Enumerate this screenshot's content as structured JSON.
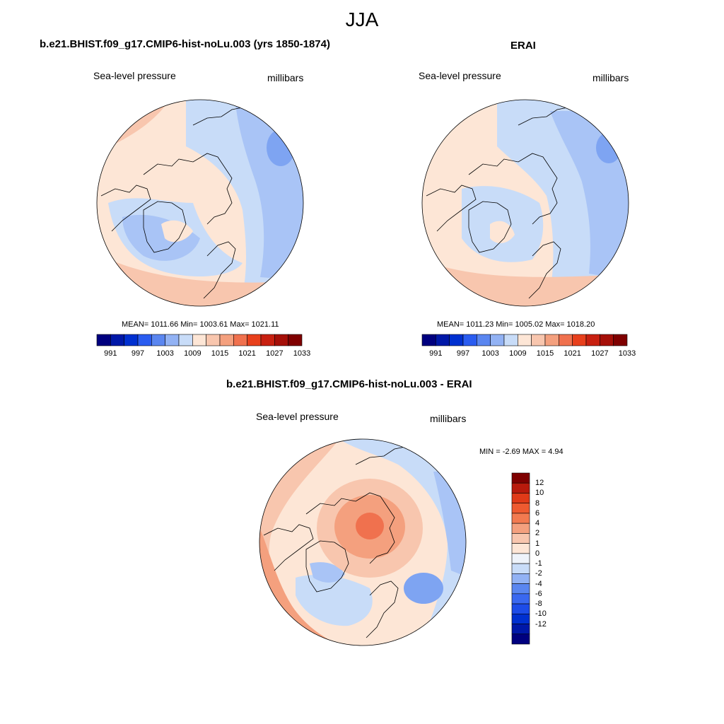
{
  "season_title": "JJA",
  "panels": {
    "model": {
      "title": "b.e21.BHIST.f09_g17.CMIP6-hist-noLu.003 (yrs 1850-1874)",
      "variable": "Sea-level pressure",
      "units": "millibars",
      "stats": "MEAN= 1011.66  Min= 1003.61  Max= 1021.11"
    },
    "obs": {
      "title": "ERAI",
      "variable": "Sea-level pressure",
      "units": "millibars",
      "stats": "MEAN= 1011.23  Min= 1005.02  Max= 1018.20"
    },
    "diff": {
      "title": "b.e21.BHIST.f09_g17.CMIP6-hist-noLu.003 - ERAI",
      "variable": "Sea-level pressure",
      "units": "millibars",
      "stats": "MIN =  -2.69 MAX =   4.94"
    }
  },
  "abs_colorbar": {
    "colors": [
      "#00007f",
      "#0018a8",
      "#0030d0",
      "#2a5cf0",
      "#5a86f0",
      "#92b2f4",
      "#c8dcf8",
      "#fde6d6",
      "#f8c6ae",
      "#f4a07e",
      "#f0714e",
      "#e8401c",
      "#c82010",
      "#a50f08",
      "#7f0000"
    ],
    "tick_labels": [
      "991",
      "997",
      "1003",
      "1009",
      "1015",
      "1021",
      "1027",
      "1033"
    ]
  },
  "diff_colorbar": {
    "colors": [
      "#00007f",
      "#0018a8",
      "#0030d0",
      "#1d4ce8",
      "#3a68f0",
      "#5a86f0",
      "#92b2f4",
      "#c8dcf8",
      "#eef3fa",
      "#fde6d6",
      "#f8c6ae",
      "#f4a07e",
      "#f27a50",
      "#ee5a30",
      "#e03a18",
      "#b81a0c",
      "#7f0000"
    ],
    "tick_labels": [
      "12",
      "10",
      "8",
      "6",
      "4",
      "2",
      "1",
      "0",
      "-1",
      "-2",
      "-4",
      "-6",
      "-8",
      "-10",
      "-12"
    ]
  },
  "colors": {
    "neutral_warm": "#fde6d6",
    "light_blue": "#c8dcf8",
    "mid_blue": "#a9c4f6",
    "blue": "#7ea4f2",
    "light_red": "#f8c6ae",
    "red": "#f4a07e",
    "deep_red": "#f0714e",
    "coast": "#000000"
  }
}
